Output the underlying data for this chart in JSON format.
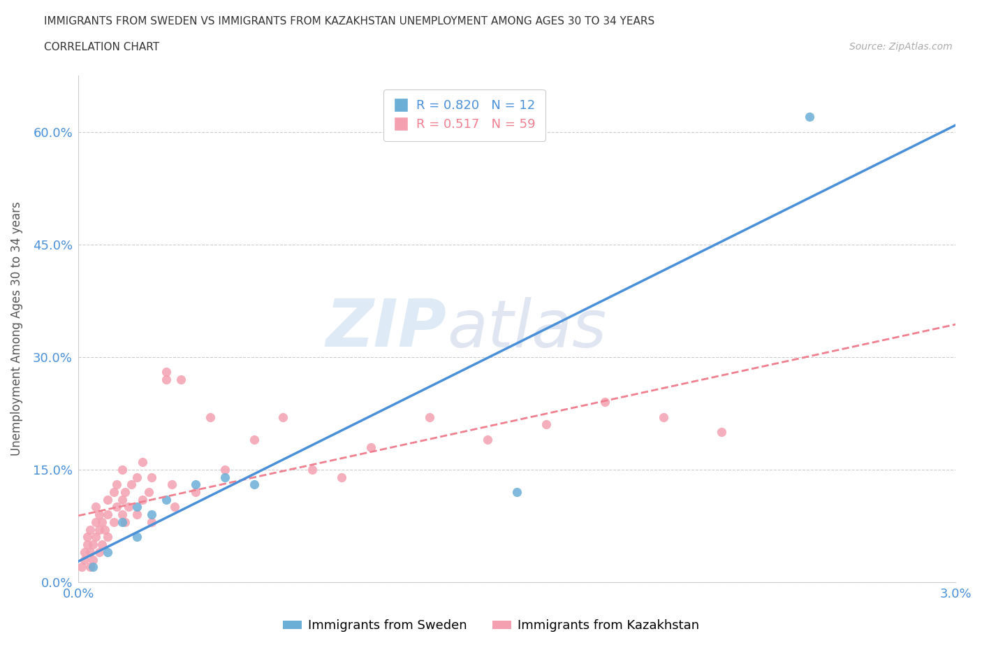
{
  "title_line1": "IMMIGRANTS FROM SWEDEN VS IMMIGRANTS FROM KAZAKHSTAN UNEMPLOYMENT AMONG AGES 30 TO 34 YEARS",
  "title_line2": "CORRELATION CHART",
  "source_text": "Source: ZipAtlas.com",
  "ylabel": "Unemployment Among Ages 30 to 34 years",
  "xmin": 0.0,
  "xmax": 0.03,
  "ymin": 0.0,
  "ymax": 0.675,
  "yticks": [
    0.0,
    0.15,
    0.3,
    0.45,
    0.6
  ],
  "ytick_labels": [
    "0.0%",
    "15.0%",
    "30.0%",
    "45.0%",
    "60.0%"
  ],
  "xticks": [
    0.0,
    0.005,
    0.01,
    0.015,
    0.02,
    0.025,
    0.03
  ],
  "xtick_labels_show": [
    "0.0%",
    "",
    "",
    "",
    "",
    "",
    "3.0%"
  ],
  "sweden_color": "#6baed6",
  "kazakhstan_color": "#f4a0b0",
  "sweden_line_color": "#4a90d9",
  "kazakhstan_line_color": "#f08090",
  "sweden_R": 0.82,
  "sweden_N": 12,
  "kazakhstan_R": 0.517,
  "kazakhstan_N": 59,
  "watermark_ZIP": "ZIP",
  "watermark_atlas": "atlas",
  "background_color": "#ffffff",
  "grid_color": "#cccccc",
  "axis_label_color": "#555555",
  "tick_color": "#4a90d9",
  "sweden_scatter_x": [
    0.0005,
    0.001,
    0.0015,
    0.002,
    0.002,
    0.0025,
    0.003,
    0.004,
    0.005,
    0.006,
    0.015,
    0.025
  ],
  "sweden_scatter_y": [
    0.02,
    0.04,
    0.08,
    0.06,
    0.1,
    0.09,
    0.11,
    0.13,
    0.14,
    0.13,
    0.12,
    0.62
  ],
  "kazakhstan_scatter_x": [
    0.0001,
    0.0002,
    0.0002,
    0.0003,
    0.0003,
    0.0004,
    0.0004,
    0.0004,
    0.0005,
    0.0005,
    0.0006,
    0.0006,
    0.0006,
    0.0007,
    0.0007,
    0.0007,
    0.0008,
    0.0008,
    0.0009,
    0.001,
    0.001,
    0.001,
    0.0012,
    0.0012,
    0.0013,
    0.0013,
    0.0015,
    0.0015,
    0.0015,
    0.0016,
    0.0016,
    0.0017,
    0.0018,
    0.002,
    0.002,
    0.0022,
    0.0022,
    0.0024,
    0.0025,
    0.0025,
    0.003,
    0.003,
    0.0032,
    0.0033,
    0.0035,
    0.004,
    0.0045,
    0.005,
    0.006,
    0.007,
    0.008,
    0.009,
    0.01,
    0.012,
    0.014,
    0.016,
    0.018,
    0.02,
    0.022
  ],
  "kazakhstan_scatter_y": [
    0.02,
    0.03,
    0.04,
    0.05,
    0.06,
    0.02,
    0.04,
    0.07,
    0.03,
    0.05,
    0.06,
    0.08,
    0.1,
    0.04,
    0.07,
    0.09,
    0.05,
    0.08,
    0.07,
    0.06,
    0.09,
    0.11,
    0.08,
    0.12,
    0.1,
    0.13,
    0.09,
    0.11,
    0.15,
    0.08,
    0.12,
    0.1,
    0.13,
    0.14,
    0.09,
    0.11,
    0.16,
    0.12,
    0.08,
    0.14,
    0.27,
    0.28,
    0.13,
    0.1,
    0.27,
    0.12,
    0.22,
    0.15,
    0.19,
    0.22,
    0.15,
    0.14,
    0.18,
    0.22,
    0.19,
    0.21,
    0.24,
    0.22,
    0.2
  ]
}
